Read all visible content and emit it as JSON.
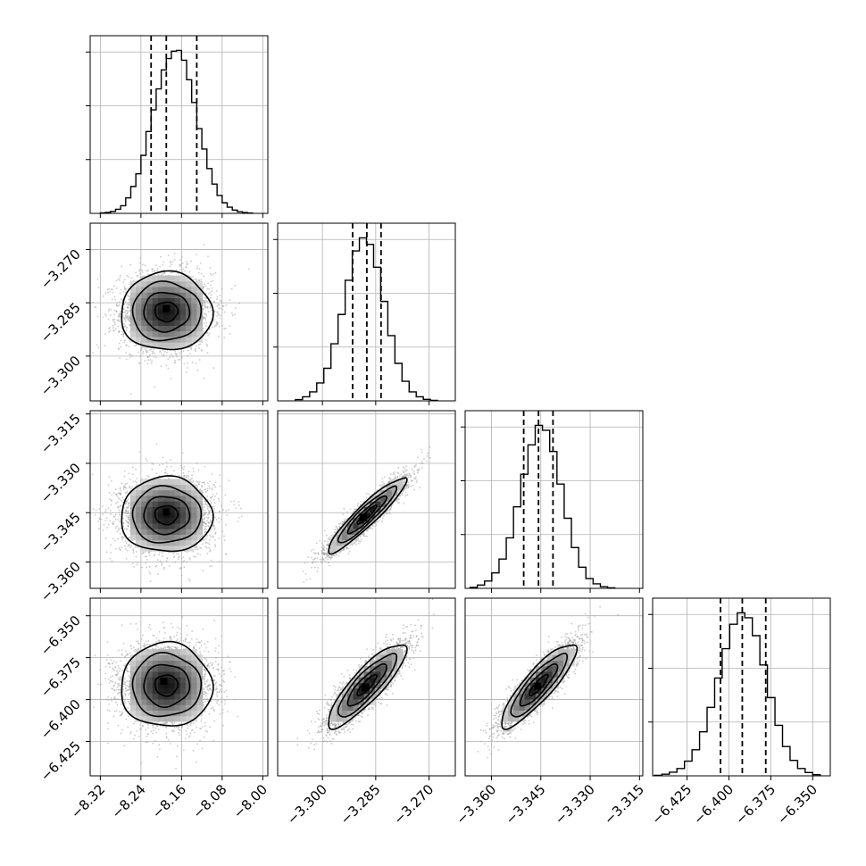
{
  "chart_data": {
    "type": "corner",
    "description_of_layout": "4x4 lower-triangular corner plot; histograms on diagonal, 2D density + contours off-diagonal",
    "parameters": [
      {
        "index": 0,
        "range": [
          -8.34,
          -7.99
        ],
        "ticks": [
          -8.32,
          -8.24,
          -8.16,
          -8.08,
          -8.0
        ],
        "tick_labels": [
          "−8.32",
          "−8.24",
          "−8.16",
          "−8.08",
          "−8.00"
        ],
        "quantiles": [
          -8.22,
          -8.19,
          -8.13
        ],
        "hist_bins": [
          -8.32,
          -8.31,
          -8.3,
          -8.29,
          -8.28,
          -8.27,
          -8.26,
          -8.25,
          -8.24,
          -8.23,
          -8.22,
          -8.21,
          -8.2,
          -8.19,
          -8.18,
          -8.17,
          -8.16,
          -8.15,
          -8.14,
          -8.13,
          -8.12,
          -8.11,
          -8.1,
          -8.09,
          -8.08,
          -8.07,
          -8.06,
          -8.05,
          -8.04,
          -8.03,
          -8.02
        ],
        "hist_counts": [
          0.3,
          0.6,
          1.2,
          2.5,
          4.7,
          9.5,
          16.5,
          24.3,
          35.6,
          50.2,
          63.5,
          76.4,
          88.0,
          95.0,
          99.5,
          100.0,
          94.0,
          82.0,
          68.0,
          52.0,
          39.5,
          27.5,
          18.0,
          11.0,
          6.5,
          3.8,
          2.0,
          1.0,
          0.5,
          0.2
        ]
      },
      {
        "index": 1,
        "range": [
          -3.3126,
          -3.2626
        ],
        "ticks": [
          -3.3,
          -3.285,
          -3.27
        ],
        "tick_labels": [
          "−3.300",
          "−3.285",
          "−3.270"
        ],
        "quantiles": [
          -3.2915,
          -3.2875,
          -3.2835
        ],
        "hist_bins": [
          -3.3076,
          -3.3056,
          -3.3036,
          -3.3016,
          -3.2996,
          -3.2976,
          -3.2956,
          -3.2936,
          -3.2916,
          -3.2896,
          -3.2876,
          -3.2856,
          -3.2836,
          -3.2816,
          -3.2796,
          -3.2776,
          -3.2756,
          -3.2736,
          -3.2716,
          -3.2696
        ],
        "hist_counts": [
          0.8,
          2.5,
          5.5,
          11.0,
          20.0,
          35.0,
          53.0,
          74.0,
          92.0,
          100.0,
          96.0,
          82.0,
          61.0,
          40.0,
          23.0,
          12.0,
          5.5,
          2.5,
          0.9,
          0.3
        ]
      },
      {
        "index": 2,
        "range": [
          -3.368,
          -3.314
        ],
        "ticks": [
          -3.36,
          -3.345,
          -3.33,
          -3.315
        ],
        "tick_labels": [
          "−3.360",
          "−3.345",
          "−3.330",
          "−3.315"
        ],
        "quantiles": [
          -3.3502,
          -3.3457,
          -3.3413
        ],
        "hist_bins": [
          -3.3665,
          -3.3643,
          -3.3621,
          -3.3599,
          -3.3577,
          -3.3555,
          -3.3533,
          -3.3511,
          -3.3489,
          -3.3467,
          -3.3445,
          -3.3423,
          -3.3401,
          -3.3379,
          -3.3357,
          -3.3335,
          -3.3313,
          -3.3291,
          -3.3269,
          -3.3247
        ],
        "hist_counts": [
          0.6,
          2.0,
          4.5,
          9.5,
          18.0,
          31.0,
          50.0,
          70.0,
          88.0,
          100.0,
          97.0,
          84.0,
          64.0,
          43.0,
          25.0,
          13.0,
          6.0,
          2.8,
          1.0,
          0.3
        ]
      },
      {
        "index": 3,
        "range": [
          -6.4455,
          -6.3395
        ],
        "ticks": [
          -6.425,
          -6.4,
          -6.375,
          -6.35
        ],
        "tick_labels": [
          "−6.425",
          "−6.400",
          "−6.375",
          "−6.350"
        ],
        "quantiles": [
          -6.405,
          -6.392,
          -6.378
        ],
        "hist_bins": [
          -6.4445,
          -6.44,
          -6.4355,
          -6.431,
          -6.4265,
          -6.422,
          -6.4175,
          -6.413,
          -6.4085,
          -6.404,
          -6.3995,
          -6.395,
          -6.3905,
          -6.386,
          -6.3815,
          -6.377,
          -6.3725,
          -6.368,
          -6.3635,
          -6.359,
          -6.3545,
          -6.35
        ],
        "hist_counts": [
          0.3,
          1.0,
          2.2,
          4.5,
          9.0,
          16.0,
          27.0,
          42.0,
          60.0,
          78.0,
          93.0,
          100.0,
          97.0,
          86.0,
          68.0,
          48.0,
          31.0,
          18.0,
          9.5,
          4.5,
          2.0,
          0.7
        ]
      }
    ],
    "pairs": [
      {
        "x": 0,
        "y": 1,
        "mean": [
          -8.19,
          -3.2875
        ],
        "sd": [
          0.045,
          0.0055
        ],
        "rho": 0.0,
        "peak": [
          -8.19,
          -3.2867
        ]
      },
      {
        "x": 0,
        "y": 2,
        "mean": [
          -8.19,
          -3.3457
        ],
        "sd": [
          0.045,
          0.0057
        ],
        "rho": 0.0,
        "peak": [
          -8.19,
          -3.3448
        ]
      },
      {
        "x": 0,
        "y": 3,
        "mean": [
          -8.19,
          -6.3915
        ],
        "sd": [
          0.045,
          0.0125
        ],
        "rho": 0.0,
        "peak": [
          -8.195,
          -6.389
        ]
      },
      {
        "x": 1,
        "y": 2,
        "mean": [
          -3.2875,
          -3.3457
        ],
        "sd": [
          0.0055,
          0.0057
        ],
        "rho": 0.93,
        "peak": [
          -3.2885,
          -3.3465
        ]
      },
      {
        "x": 1,
        "y": 3,
        "mean": [
          -3.2875,
          -6.3915
        ],
        "sd": [
          0.0055,
          0.0125
        ],
        "rho": 0.86,
        "peak": [
          -3.288,
          -6.393
        ]
      },
      {
        "x": 2,
        "y": 3,
        "mean": [
          -3.3457,
          -6.3915
        ],
        "sd": [
          0.0057,
          0.0125
        ],
        "rho": 0.87,
        "peak": [
          -3.346,
          -6.392
        ]
      }
    ],
    "contour_levels_sigma": [
      0.5,
      1.0,
      1.5,
      2.0
    ],
    "grid": true,
    "line_color": "#000000",
    "point_color": "#9e9e9e",
    "grid_color": "#b0b0b0"
  }
}
